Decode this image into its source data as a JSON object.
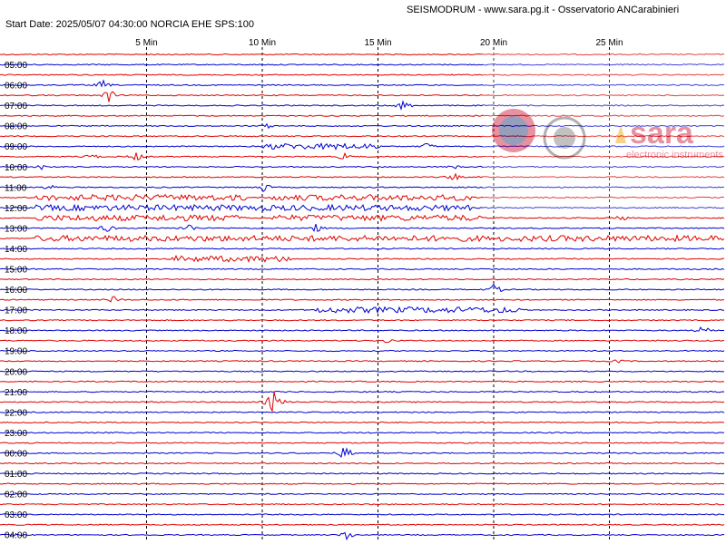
{
  "header": {
    "title": "SEISMODRUM - www.sara.pg.it - Osservatorio ANCarabinieri",
    "start_info": "Start Date: 2025/05/07 04:30:00 NORCIA  EHE  SPS:100"
  },
  "axis": {
    "minute_ticks": [
      "5 Min",
      "10 Min",
      "15 Min",
      "20 Min",
      "25 Min"
    ],
    "hour_labels": [
      "05:00",
      "06:00",
      "07:00",
      "08:00",
      "09:00",
      "10:00",
      "11:00",
      "12:00",
      "13:00",
      "14:00",
      "15:00",
      "16:00",
      "17:00",
      "18:00",
      "19:00",
      "20:00",
      "21:00",
      "22:00",
      "23:00",
      "00:00",
      "01:00",
      "02:00",
      "03:00",
      "04:00"
    ]
  },
  "watermark": {
    "brand": "sara",
    "tagline": "electronic instruments"
  },
  "colors": {
    "trace_a": "#e00000",
    "trace_b": "#0000d0",
    "grid": "#000000"
  }
}
